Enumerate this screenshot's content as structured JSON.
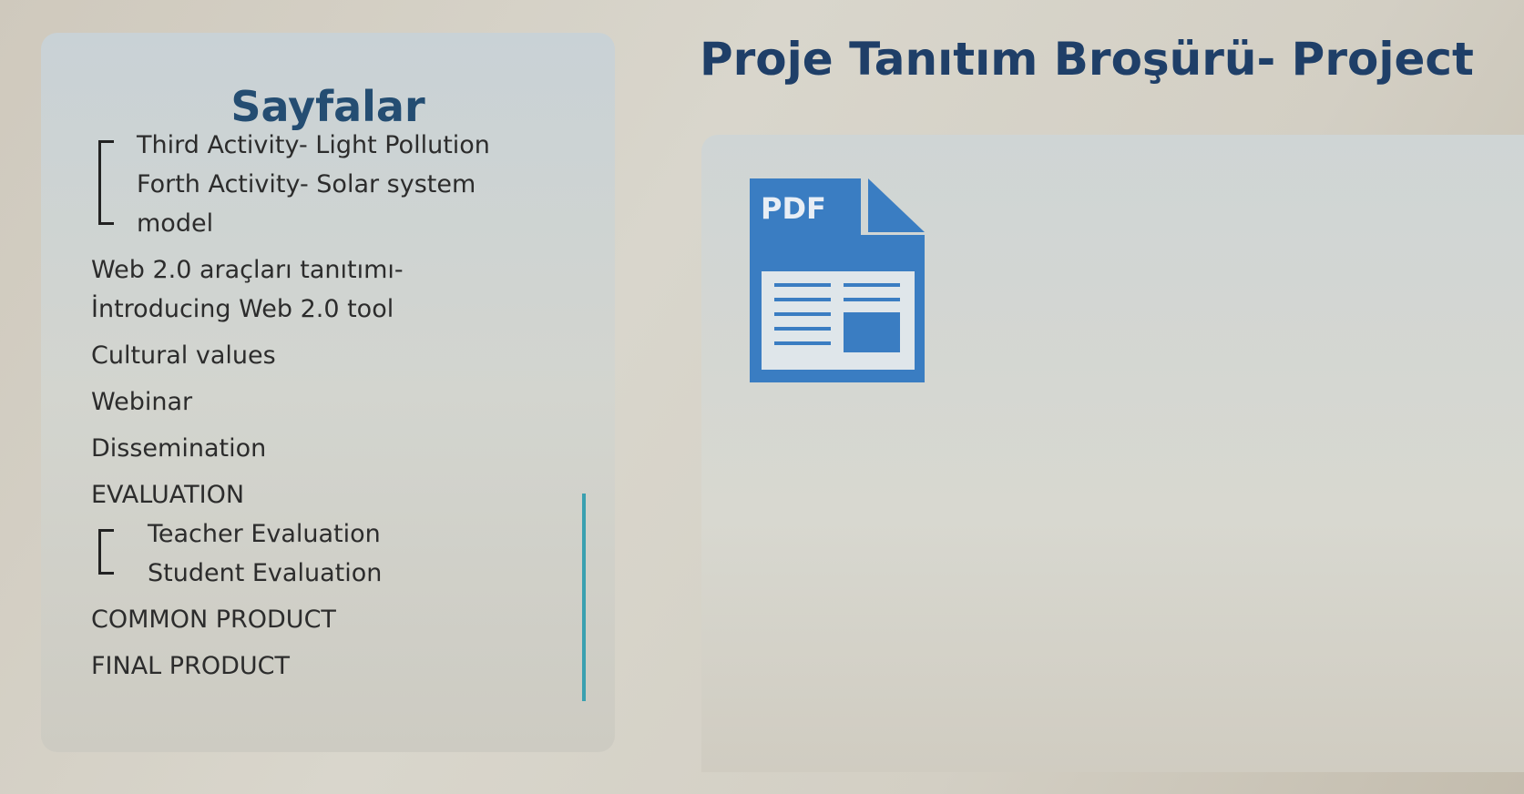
{
  "sidebar": {
    "title": "Sayfalar",
    "nested_top": [
      "Third Activity- Light Pollution",
      "Forth Activity- Solar system model"
    ],
    "items": [
      {
        "label": "Web 2.0 araçları tanıtımı- İntroducing Web 2.0 tool"
      },
      {
        "label": "Cultural values"
      },
      {
        "label": "Webinar"
      },
      {
        "label": "Dissemination"
      },
      {
        "label": "EVALUATION",
        "children": [
          "Teacher Evaluation",
          "Student Evaluation"
        ]
      },
      {
        "label": "COMMON PRODUCT"
      },
      {
        "label": "FINAL PRODUCT"
      }
    ]
  },
  "main": {
    "title": "Proje Tanıtım Broşürü- Project",
    "file_icon_label": "PDF"
  }
}
